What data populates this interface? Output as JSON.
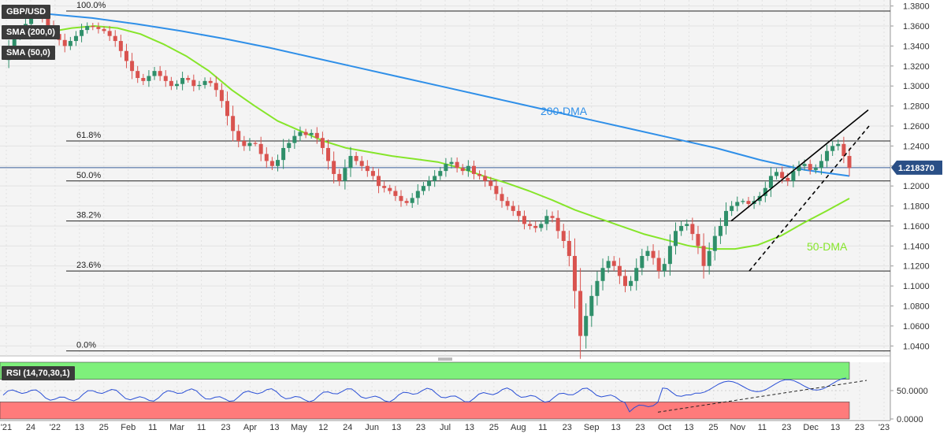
{
  "chart_data": {
    "type": "candlestick",
    "symbol": "GBP/USD",
    "indicators": {
      "sma_200_label": "SMA (200,0)",
      "sma_50_label": "SMA (50,0)",
      "sma_200_annotation": "200-DMA",
      "sma_50_annotation": "50-DMA",
      "colors": {
        "sma200": "#2f8fe8",
        "sma50": "#86e52a",
        "up": "#2f8f6a",
        "down": "#d9534f"
      }
    },
    "price_axis": {
      "ticks": [
        "1.3800",
        "1.3600",
        "1.3400",
        "1.3200",
        "1.3000",
        "1.2800",
        "1.2600",
        "1.2400",
        "1.2200",
        "1.2000",
        "1.1800",
        "1.1600",
        "1.1400",
        "1.1200",
        "1.1000",
        "1.0800",
        "1.0600",
        "1.0400"
      ],
      "range": [
        1.03,
        1.386
      ],
      "current_price": "1.218370",
      "current_price_value": 1.21837
    },
    "fibonacci": [
      {
        "label": "100.0%",
        "value": 1.375
      },
      {
        "label": "61.8%",
        "value": 1.245
      },
      {
        "label": "50.0%",
        "value": 1.205
      },
      {
        "label": "38.2%",
        "value": 1.165
      },
      {
        "label": "23.6%",
        "value": 1.115
      },
      {
        "label": "0.0%",
        "value": 1.035
      }
    ],
    "time_axis": {
      "labels": [
        "'21",
        "24",
        "'22",
        "13",
        "25",
        "Feb",
        "11",
        "Mar",
        "11",
        "23",
        "Apr",
        "13",
        "May",
        "12",
        "24",
        "Jun",
        "13",
        "23",
        "Jul",
        "13",
        "25",
        "Aug",
        "11",
        "23",
        "Sep",
        "13",
        "23",
        "Oct",
        "13",
        "25",
        "Nov",
        "11",
        "23",
        "Dec",
        "13",
        "23",
        "'23"
      ]
    },
    "series_close": [
      1.326,
      1.338,
      1.35,
      1.355,
      1.362,
      1.37,
      1.372,
      1.368,
      1.36,
      1.352,
      1.346,
      1.34,
      1.345,
      1.35,
      1.356,
      1.36,
      1.359,
      1.357,
      1.355,
      1.35,
      1.345,
      1.335,
      1.325,
      1.315,
      1.308,
      1.305,
      1.31,
      1.315,
      1.31,
      1.305,
      1.3,
      1.302,
      1.308,
      1.306,
      1.3,
      1.301,
      1.305,
      1.303,
      1.296,
      1.285,
      1.27,
      1.255,
      1.245,
      1.24,
      1.243,
      1.242,
      1.232,
      1.225,
      1.22,
      1.226,
      1.238,
      1.243,
      1.25,
      1.254,
      1.251,
      1.253,
      1.248,
      1.238,
      1.225,
      1.212,
      1.205,
      1.218,
      1.23,
      1.225,
      1.22,
      1.215,
      1.21,
      1.2,
      1.198,
      1.195,
      1.19,
      1.185,
      1.183,
      1.188,
      1.195,
      1.2,
      1.205,
      1.21,
      1.215,
      1.222,
      1.224,
      1.218,
      1.215,
      1.22,
      1.212,
      1.21,
      1.205,
      1.2,
      1.192,
      1.185,
      1.18,
      1.175,
      1.17,
      1.162,
      1.16,
      1.158,
      1.162,
      1.17,
      1.168,
      1.155,
      1.145,
      1.13,
      1.095,
      1.05,
      1.07,
      1.09,
      1.105,
      1.118,
      1.125,
      1.12,
      1.11,
      1.1,
      1.105,
      1.118,
      1.13,
      1.135,
      1.128,
      1.115,
      1.122,
      1.14,
      1.155,
      1.16,
      1.162,
      1.152,
      1.14,
      1.12,
      1.135,
      1.15,
      1.16,
      1.175,
      1.18,
      1.184,
      1.185,
      1.182,
      1.185,
      1.19,
      1.198,
      1.21,
      1.214,
      1.208,
      1.205,
      1.215,
      1.22,
      1.222,
      1.216,
      1.218,
      1.225,
      1.235,
      1.24,
      1.242,
      1.23,
      1.218
    ],
    "sma200": [
      1.374,
      1.372,
      1.368,
      1.362,
      1.355,
      1.347,
      1.338,
      1.328,
      1.318,
      1.308,
      1.298,
      1.288,
      1.278,
      1.268,
      1.258,
      1.248,
      1.238,
      1.226,
      1.216,
      1.21
    ],
    "sma50": [
      1.35,
      1.352,
      1.354,
      1.358,
      1.36,
      1.358,
      1.352,
      1.342,
      1.33,
      1.315,
      1.296,
      1.28,
      1.265,
      1.255,
      1.245,
      1.238,
      1.234,
      1.23,
      1.227,
      1.224,
      1.218,
      1.21,
      1.203,
      1.195,
      1.186,
      1.176,
      1.168,
      1.16,
      1.152,
      1.146,
      1.14,
      1.137,
      1.137,
      1.141,
      1.15,
      1.163,
      1.175,
      1.1875
    ],
    "rsi": {
      "label": "RSI (14,70,30,1)",
      "ticks": [
        "50.0000",
        "0.0000"
      ],
      "overbought": 70,
      "oversold": 30,
      "last": 58
    }
  }
}
